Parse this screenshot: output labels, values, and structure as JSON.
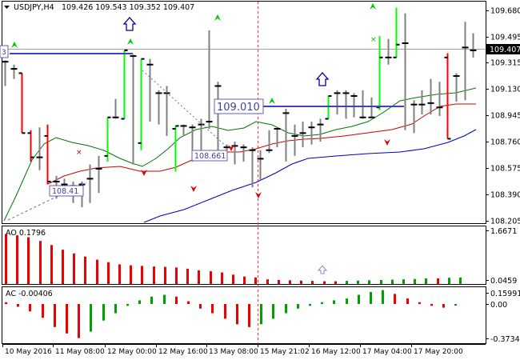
{
  "header": {
    "symbol_timeframe": "USDJPY,H4",
    "ohlc": "109.426 109.543 109.352 109.407"
  },
  "main_panel": {
    "price_labels": [
      "109.680",
      "109.495",
      "109.315",
      "109.130",
      "108.945",
      "108.760",
      "108.575",
      "108.390",
      "108.205"
    ],
    "current_price": "109.407",
    "level_labels": [
      {
        "id": "lvl-left",
        "text": "108.41"
      },
      {
        "id": "lvl-mid",
        "text": "108.661"
      },
      {
        "id": "lvl-right",
        "text": "109.010"
      }
    ],
    "edge_mark": "3",
    "colors": {
      "bull": "#00ff00",
      "bear": "#ff0000",
      "candle_body": "#000000",
      "wick": "#808080",
      "line_blue": "#0000bb",
      "line_red": "#d00000",
      "line_green": "#007700",
      "hline": "#4040c0",
      "arrow_up": "#000099",
      "fractal_up": "#00cc00",
      "fractal_down": "#dd0000",
      "crosshair": "#a0a0a0",
      "grid": "#000000"
    }
  },
  "ao_panel": {
    "label": "AO 0.1796",
    "scale_labels": [
      "1.6671",
      "0.0459"
    ]
  },
  "ac_panel": {
    "label": "AC -0.00406",
    "scale_labels": [
      "0.15991",
      "0.00",
      "-0.37346"
    ]
  },
  "time_labels": [
    "10 May 2016",
    "11 May 08:00",
    "12 May 00:00",
    "12 May 16:00",
    "13 May 08:00",
    "15 May 21:02",
    "16 May 12:00",
    "17 May 04:00",
    "17 May 20:00"
  ],
  "chart_data": {
    "type": "candlestick",
    "symbol": "USDJPY",
    "timeframe": "H4",
    "ylim": [
      108.205,
      109.75
    ],
    "bars": [
      {
        "o": 109.32,
        "h": 109.33,
        "l": 109.15,
        "c": 109.32
      },
      {
        "o": 109.27,
        "h": 109.3,
        "l": 109.2,
        "c": 109.27
      },
      {
        "o": 109.24,
        "h": 109.24,
        "l": 108.82,
        "c": 108.82
      },
      {
        "o": 108.82,
        "h": 108.84,
        "l": 108.62,
        "c": 108.65
      },
      {
        "o": 108.65,
        "h": 108.86,
        "l": 108.56,
        "c": 108.65
      },
      {
        "o": 108.8,
        "h": 108.88,
        "l": 108.46,
        "c": 108.48
      },
      {
        "o": 108.48,
        "h": 108.52,
        "l": 108.36,
        "c": 108.48
      },
      {
        "o": 108.46,
        "h": 108.5,
        "l": 108.41,
        "c": 108.46
      },
      {
        "o": 108.45,
        "h": 108.48,
        "l": 108.33,
        "c": 108.45
      },
      {
        "o": 108.46,
        "h": 108.48,
        "l": 108.3,
        "c": 108.46
      },
      {
        "o": 108.5,
        "h": 108.6,
        "l": 108.33,
        "c": 108.5
      },
      {
        "o": 108.57,
        "h": 108.66,
        "l": 108.4,
        "c": 108.57
      },
      {
        "o": 108.66,
        "h": 108.93,
        "l": 108.62,
        "c": 108.93
      },
      {
        "o": 108.93,
        "h": 109.06,
        "l": 108.92,
        "c": 108.93
      },
      {
        "o": 108.92,
        "h": 109.4,
        "l": 108.92,
        "c": 109.4
      },
      {
        "o": 109.36,
        "h": 109.37,
        "l": 108.6,
        "c": 109.36
      },
      {
        "o": 108.75,
        "h": 109.34,
        "l": 108.7,
        "c": 109.34
      },
      {
        "o": 109.3,
        "h": 109.34,
        "l": 108.9,
        "c": 109.3
      },
      {
        "o": 109.1,
        "h": 109.12,
        "l": 108.88,
        "c": 109.1
      },
      {
        "o": 109.1,
        "h": 109.15,
        "l": 108.8,
        "c": 109.1
      },
      {
        "o": 108.85,
        "h": 108.87,
        "l": 108.55,
        "c": 108.87
      },
      {
        "o": 108.87,
        "h": 108.88,
        "l": 108.8,
        "c": 108.87
      },
      {
        "o": 108.86,
        "h": 108.88,
        "l": 108.62,
        "c": 108.86
      },
      {
        "o": 108.88,
        "h": 108.92,
        "l": 108.7,
        "c": 108.88
      },
      {
        "o": 108.9,
        "h": 109.54,
        "l": 108.85,
        "c": 108.9
      },
      {
        "o": 109.15,
        "h": 109.18,
        "l": 108.66,
        "c": 109.15
      },
      {
        "o": 108.72,
        "h": 108.74,
        "l": 108.64,
        "c": 108.72
      },
      {
        "o": 108.73,
        "h": 108.76,
        "l": 108.6,
        "c": 108.73
      },
      {
        "o": 108.72,
        "h": 108.74,
        "l": 108.62,
        "c": 108.72
      },
      {
        "o": 108.7,
        "h": 108.72,
        "l": 108.44,
        "c": 108.7
      },
      {
        "o": 108.64,
        "h": 108.7,
        "l": 108.49,
        "c": 108.64
      },
      {
        "o": 108.7,
        "h": 108.84,
        "l": 108.68,
        "c": 108.7
      },
      {
        "o": 108.85,
        "h": 108.86,
        "l": 108.72,
        "c": 108.85
      },
      {
        "o": 108.96,
        "h": 108.99,
        "l": 108.62,
        "c": 108.96
      },
      {
        "o": 108.8,
        "h": 108.88,
        "l": 108.66,
        "c": 108.8
      },
      {
        "o": 108.82,
        "h": 108.9,
        "l": 108.72,
        "c": 108.82
      },
      {
        "o": 108.86,
        "h": 108.9,
        "l": 108.74,
        "c": 108.86
      },
      {
        "o": 108.88,
        "h": 108.92,
        "l": 108.76,
        "c": 108.88
      },
      {
        "o": 108.92,
        "h": 109.08,
        "l": 108.92,
        "c": 109.08
      },
      {
        "o": 109.1,
        "h": 109.12,
        "l": 108.95,
        "c": 109.1
      },
      {
        "o": 109.1,
        "h": 109.12,
        "l": 108.92,
        "c": 109.1
      },
      {
        "o": 109.08,
        "h": 109.1,
        "l": 108.93,
        "c": 109.08
      },
      {
        "o": 108.93,
        "h": 109.12,
        "l": 108.92,
        "c": 108.93
      },
      {
        "o": 108.93,
        "h": 109.07,
        "l": 108.93,
        "c": 108.93
      },
      {
        "o": 109.0,
        "h": 109.5,
        "l": 108.98,
        "c": 109.35
      },
      {
        "o": 109.35,
        "h": 109.48,
        "l": 109.3,
        "c": 109.35
      },
      {
        "o": 109.35,
        "h": 109.7,
        "l": 109.35,
        "c": 109.44
      },
      {
        "o": 109.45,
        "h": 109.66,
        "l": 108.84,
        "c": 109.45
      },
      {
        "o": 109.02,
        "h": 109.05,
        "l": 108.82,
        "c": 109.02
      },
      {
        "o": 109.02,
        "h": 109.12,
        "l": 108.95,
        "c": 109.02
      },
      {
        "o": 109.03,
        "h": 109.2,
        "l": 108.95,
        "c": 109.03
      },
      {
        "o": 109.0,
        "h": 109.18,
        "l": 108.94,
        "c": 109.0
      },
      {
        "o": 109.35,
        "h": 109.38,
        "l": 108.78,
        "c": 108.78
      },
      {
        "o": 109.22,
        "h": 109.24,
        "l": 109.04,
        "c": 109.22
      },
      {
        "o": 109.42,
        "h": 109.6,
        "l": 109.05,
        "c": 109.42
      },
      {
        "o": 109.4,
        "h": 109.52,
        "l": 109.35,
        "c": 109.4
      }
    ],
    "ao_values": [
      1.6,
      1.56,
      1.5,
      1.38,
      1.25,
      1.1,
      0.98,
      0.88,
      0.78,
      0.7,
      0.63,
      0.6,
      0.58,
      0.56,
      0.55,
      0.53,
      0.49,
      0.44,
      0.41,
      0.37,
      0.3,
      0.24,
      0.21,
      0.15,
      0.13,
      0.12,
      0.11,
      0.1,
      0.09,
      0.09,
      0.1,
      0.11,
      0.12,
      0.13,
      0.14,
      0.15,
      0.16,
      0.18,
      0.18,
      0.2,
      0.21
    ],
    "ac_values": [
      0.02,
      -0.03,
      -0.08,
      -0.15,
      -0.25,
      -0.32,
      -0.37,
      -0.3,
      -0.18,
      -0.1,
      -0.02,
      0.04,
      0.08,
      0.1,
      0.08,
      0.03,
      -0.05,
      -0.1,
      -0.16,
      -0.22,
      -0.25,
      -0.22,
      -0.16,
      -0.1,
      -0.05,
      -0.02,
      0.02,
      0.04,
      0.06,
      0.1,
      0.13,
      0.15,
      0.11,
      0.06,
      0.02,
      -0.02,
      -0.04,
      -0.004
    ]
  }
}
